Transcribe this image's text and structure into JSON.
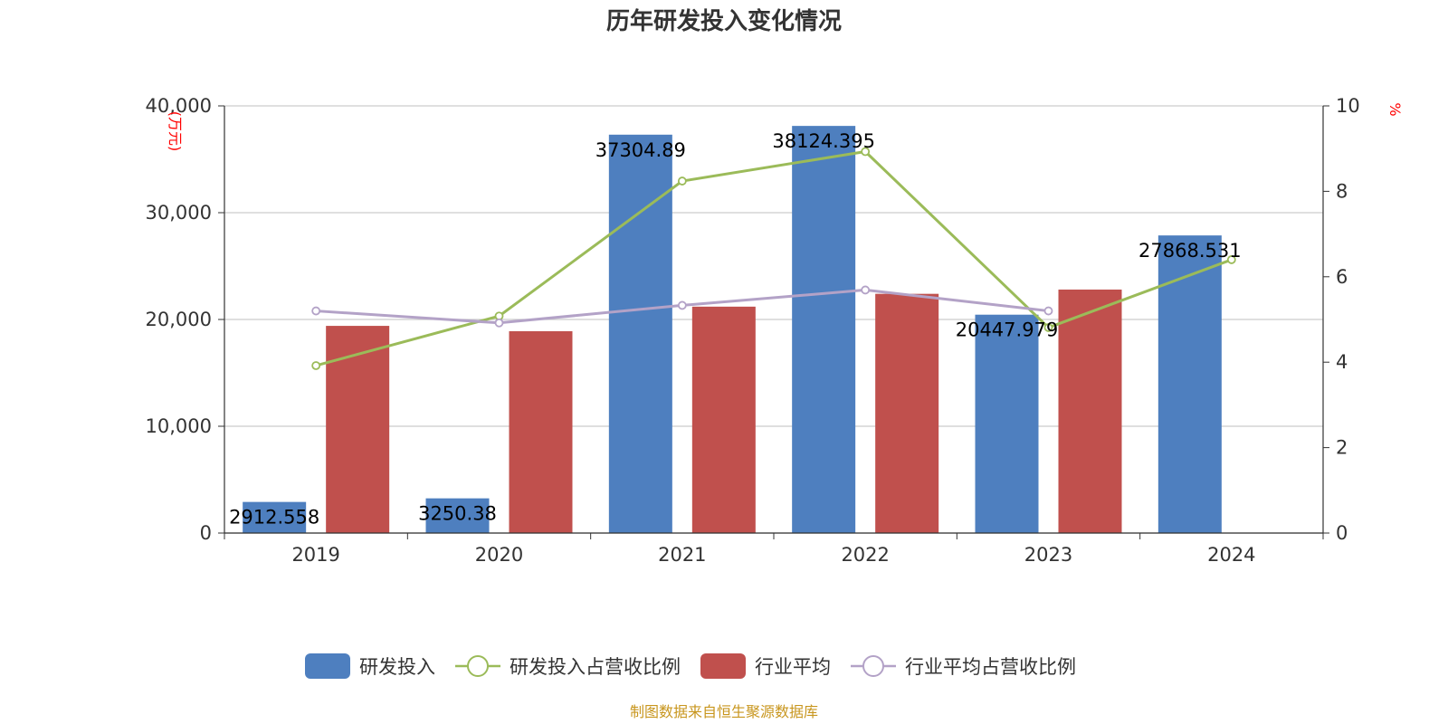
{
  "chart_data": {
    "type": "bar",
    "title": "历年研发投入变化情况",
    "categories": [
      "2019",
      "2020",
      "2021",
      "2022",
      "2023",
      "2024"
    ],
    "y_left": {
      "unit": "(万元)",
      "ylim": [
        0,
        40000
      ],
      "ticks": [
        "0",
        "10,000",
        "20,000",
        "30,000",
        "40,000"
      ]
    },
    "y_right": {
      "unit": "%",
      "ylim": [
        0,
        10
      ],
      "ticks": [
        "0",
        "2",
        "4",
        "6",
        "8",
        "10"
      ]
    },
    "series": [
      {
        "name": "研发投入",
        "kind": "bar",
        "axis": "left",
        "color": "#4e7fbf",
        "values": [
          2912.558,
          3250.38,
          37304.89,
          38124.395,
          20447.979,
          27868.531
        ],
        "labels": [
          "2912.558",
          "3250.38",
          "37304.89",
          "38124.395",
          "20447.979",
          "27868.531"
        ]
      },
      {
        "name": "研发投入占营收比例",
        "kind": "line",
        "axis": "right",
        "color": "#9bbb59",
        "values": [
          3.92,
          5.08,
          8.24,
          8.93,
          4.81,
          6.4
        ]
      },
      {
        "name": "行业平均",
        "kind": "bar",
        "axis": "left",
        "color": "#c0504d",
        "values": [
          19400,
          18900,
          21200,
          22400,
          22800,
          null
        ]
      },
      {
        "name": "行业平均占营收比例",
        "kind": "line",
        "axis": "right",
        "color": "#b3a2c7",
        "values": [
          5.2,
          4.92,
          5.33,
          5.69,
          5.2,
          null
        ]
      }
    ],
    "grid": true,
    "legend_position": "bottom"
  },
  "footer": "制图数据来自恒生聚源数据库"
}
